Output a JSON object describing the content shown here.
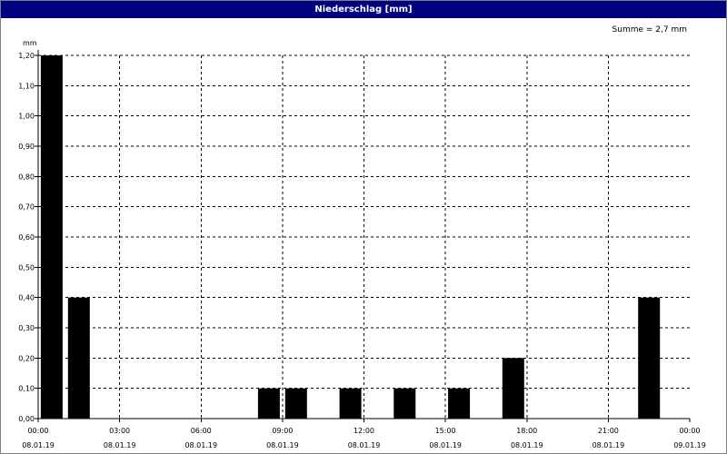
{
  "window": {
    "title": "Niederschlag [mm]"
  },
  "chart_data": {
    "type": "bar",
    "title": "Niederschlag [mm]",
    "ylabel": "mm",
    "annotation": "Summe = 2,7 mm",
    "ylim": [
      0,
      1.2
    ],
    "y_ticks": [
      "0,00",
      "0,10",
      "0,20",
      "0,30",
      "0,40",
      "0,50",
      "0,60",
      "0,70",
      "0,80",
      "0,90",
      "1,00",
      "1,10",
      "1,20"
    ],
    "x_range_hours": [
      0,
      24
    ],
    "x_ticks": [
      {
        "time": "00:00",
        "date": "08.01.19"
      },
      {
        "time": "03:00",
        "date": "08.01.19"
      },
      {
        "time": "06:00",
        "date": "08.01.19"
      },
      {
        "time": "09:00",
        "date": "08.01.19"
      },
      {
        "time": "12:00",
        "date": "08.01.19"
      },
      {
        "time": "15:00",
        "date": "08.01.19"
      },
      {
        "time": "18:00",
        "date": "08.01.19"
      },
      {
        "time": "21:00",
        "date": "08.01.19"
      },
      {
        "time": "00:00",
        "date": "09.01.19"
      }
    ],
    "bars": [
      {
        "hour": 0,
        "value": 1.2
      },
      {
        "hour": 1,
        "value": 0.4
      },
      {
        "hour": 8,
        "value": 0.1
      },
      {
        "hour": 9,
        "value": 0.1
      },
      {
        "hour": 11,
        "value": 0.1
      },
      {
        "hour": 13,
        "value": 0.1
      },
      {
        "hour": 15,
        "value": 0.1
      },
      {
        "hour": 17,
        "value": 0.2
      },
      {
        "hour": 22,
        "value": 0.4
      }
    ],
    "grid": true,
    "colors": {
      "bar": "#000000",
      "grid": "#000000",
      "titlebar": "#000080"
    }
  }
}
